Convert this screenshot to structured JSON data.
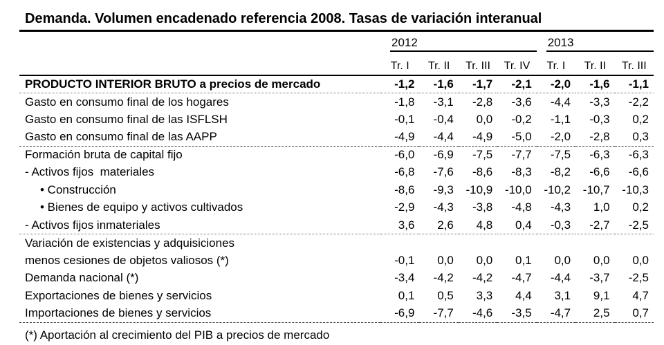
{
  "title": "Demanda. Volumen encadenado referencia 2008. Tasas de variación interanual",
  "table": {
    "year_groups": [
      {
        "label": "2012",
        "colspan": 4
      },
      {
        "label": "2013",
        "colspan": 3
      }
    ],
    "quarter_headers": [
      "Tr. I",
      "Tr. II",
      "Tr. III",
      "Tr. IV",
      "Tr. I",
      "Tr. II",
      "Tr. III"
    ],
    "rows": [
      {
        "label": "PRODUCTO INTERIOR BRUTO a precios de mercado",
        "bold": true,
        "indent": 0,
        "separator": "dotted",
        "values": [
          "-1,2",
          "-1,6",
          "-1,7",
          "-2,1",
          "-2,0",
          "-1,6",
          "-1,1"
        ]
      },
      {
        "label": "Gasto en consumo final de los hogares",
        "bold": false,
        "indent": 0,
        "separator": null,
        "values": [
          "-1,8",
          "-3,1",
          "-2,8",
          "-3,6",
          "-4,4",
          "-3,3",
          "-2,2"
        ]
      },
      {
        "label": "Gasto en consumo final de las ISFLSH",
        "bold": false,
        "indent": 0,
        "separator": null,
        "values": [
          "-0,1",
          "-0,4",
          "0,0",
          "-0,2",
          "-1,1",
          "-0,3",
          "0,2"
        ]
      },
      {
        "label": "Gasto en consumo final de las AAPP",
        "bold": false,
        "indent": 0,
        "separator": "dashed",
        "values": [
          "-4,9",
          "-4,4",
          "-4,9",
          "-5,0",
          "-2,0",
          "-2,8",
          "0,3"
        ]
      },
      {
        "label": "Formación bruta de capital fijo",
        "bold": false,
        "indent": 0,
        "separator": null,
        "values": [
          "-6,0",
          "-6,9",
          "-7,5",
          "-7,7",
          "-7,5",
          "-6,3",
          "-6,3"
        ]
      },
      {
        "label": "- Activos fijos  materiales",
        "bold": false,
        "indent": 0,
        "separator": null,
        "values": [
          "-6,8",
          "-7,6",
          "-8,6",
          "-8,3",
          "-8,2",
          "-6,6",
          "-6,6"
        ]
      },
      {
        "label": "• Construcción",
        "bold": false,
        "indent": 1,
        "separator": null,
        "values": [
          "-8,6",
          "-9,3",
          "-10,9",
          "-10,0",
          "-10,2",
          "-10,7",
          "-10,3"
        ]
      },
      {
        "label": "• Bienes de equipo y activos cultivados",
        "bold": false,
        "indent": 1,
        "separator": null,
        "values": [
          "-2,9",
          "-4,3",
          "-3,8",
          "-4,8",
          "-4,3",
          "1,0",
          "0,2"
        ]
      },
      {
        "label": "- Activos fijos inmateriales",
        "bold": false,
        "indent": 0,
        "separator": "dotted",
        "values": [
          "3,6",
          "2,6",
          "4,8",
          "0,4",
          "-0,3",
          "-2,7",
          "-2,5"
        ]
      },
      {
        "label": "Variación de existencias y adquisiciones",
        "bold": false,
        "indent": 0,
        "separator": null,
        "values": [
          "",
          "",
          "",
          "",
          "",
          "",
          ""
        ]
      },
      {
        "label": "menos cesiones de objetos valiosos (*)",
        "bold": false,
        "indent": 0,
        "separator": null,
        "values": [
          "-0,1",
          "0,0",
          "0,0",
          "0,1",
          "0,0",
          "0,0",
          "0,0"
        ]
      },
      {
        "label": "Demanda nacional (*)",
        "bold": false,
        "indent": 0,
        "separator": null,
        "values": [
          "-3,4",
          "-4,2",
          "-4,2",
          "-4,7",
          "-4,4",
          "-3,7",
          "-2,5"
        ]
      },
      {
        "label": "Exportaciones de bienes y servicios",
        "bold": false,
        "indent": 0,
        "separator": null,
        "values": [
          "0,1",
          "0,5",
          "3,3",
          "4,4",
          "3,1",
          "9,1",
          "4,7"
        ]
      },
      {
        "label": "Importaciones de bienes y servicios",
        "bold": false,
        "indent": 0,
        "separator": "dashed",
        "values": [
          "-6,9",
          "-7,7",
          "-4,6",
          "-3,5",
          "-4,7",
          "2,5",
          "0,7"
        ]
      }
    ]
  },
  "footnote": "(*) Aportación al crecimiento del PIB a precios de mercado"
}
